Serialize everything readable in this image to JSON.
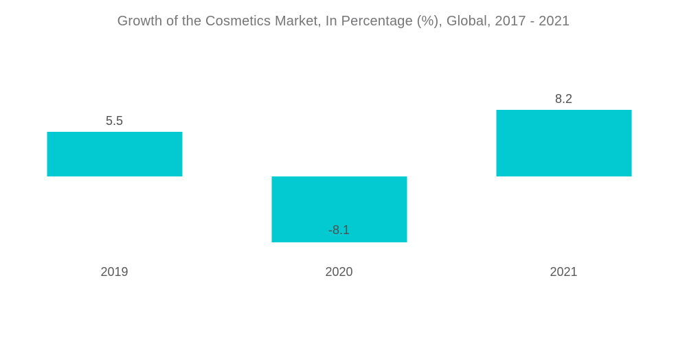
{
  "title": "Growth of the Cosmetics Market, In Percentage (%), Global, 2017 - 2021",
  "chart_data": {
    "type": "bar",
    "title": "Growth of the Cosmetics Market, In Percentage (%), Global, 2017 - 2021",
    "categories": [
      "2019",
      "2020",
      "2021"
    ],
    "values": [
      5.5,
      -8.1,
      8.2
    ],
    "value_labels": [
      "5.5",
      "-8.1",
      "8.2"
    ],
    "xlabel": "",
    "ylabel": "",
    "ylim": [
      -10.5,
      13.3
    ],
    "grid": false,
    "legend": false,
    "axis_lines": false,
    "bar_color": "#03cad0"
  },
  "colors": {
    "bar": "#03cad0",
    "title_text": "#767678",
    "value_label_text": "#4f5052",
    "axis_label_text": "#58595b",
    "background": "#ffffff"
  }
}
